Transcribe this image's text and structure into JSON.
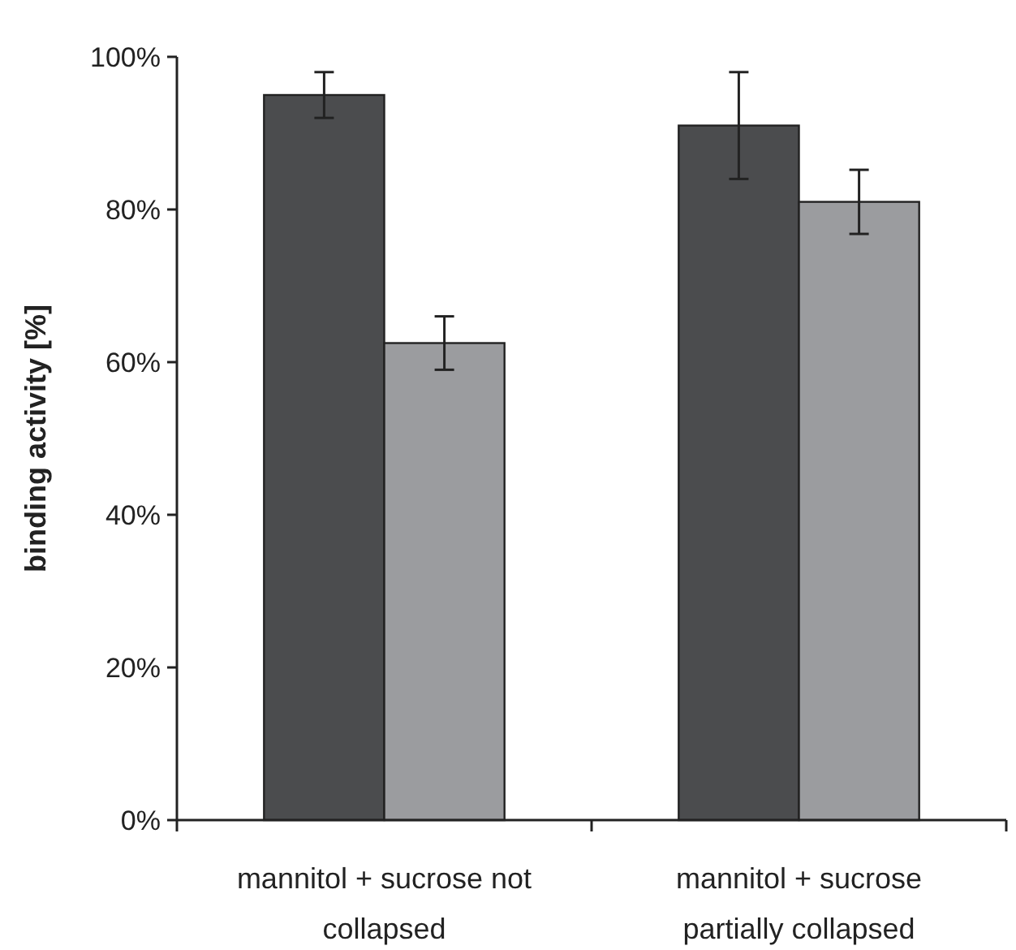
{
  "chart_data": {
    "type": "bar",
    "ylabel": "binding activity [%]",
    "categories": [
      "mannitol + sucrose not collapsed",
      "mannitol + sucrose partially collapsed"
    ],
    "series": [
      {
        "color": "#4b4c4e",
        "values": [
          95,
          91
        ],
        "errors": [
          3,
          7
        ]
      },
      {
        "color": "#9b9c9f",
        "values": [
          62.5,
          81
        ],
        "errors": [
          3.5,
          4.2
        ]
      }
    ],
    "ylim": [
      0,
      100
    ],
    "yticks": [
      {
        "value": 0,
        "label": "0%"
      },
      {
        "value": 20,
        "label": "20%"
      },
      {
        "value": 40,
        "label": "40%"
      },
      {
        "value": 60,
        "label": "60%"
      },
      {
        "value": 80,
        "label": "80%"
      },
      {
        "value": 100,
        "label": "100%"
      }
    ]
  }
}
